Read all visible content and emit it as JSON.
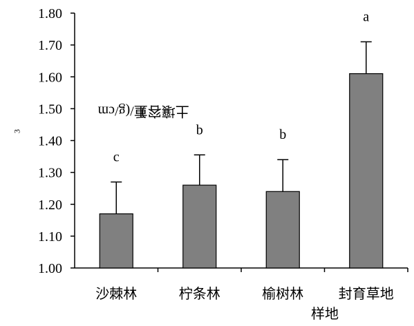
{
  "chart_data": {
    "type": "bar",
    "categories": [
      "沙棘林",
      "柠条林",
      "榆树林",
      "封育草地"
    ],
    "values": [
      1.17,
      1.26,
      1.24,
      1.61
    ],
    "errors": [
      0.1,
      0.095,
      0.1,
      0.1
    ],
    "significance": [
      "c",
      "b",
      "b",
      "a"
    ],
    "ylabel_main": "土壤容重/(g/cm",
    "ylabel_sup": "3",
    "ylabel_close": ")",
    "xlabel": "样地",
    "ylim": [
      1.0,
      1.8
    ],
    "yticks": [
      "1.00",
      "1.10",
      "1.20",
      "1.30",
      "1.40",
      "1.50",
      "1.60",
      "1.70",
      "1.80"
    ],
    "bar_color": "#808080",
    "grid": false
  }
}
